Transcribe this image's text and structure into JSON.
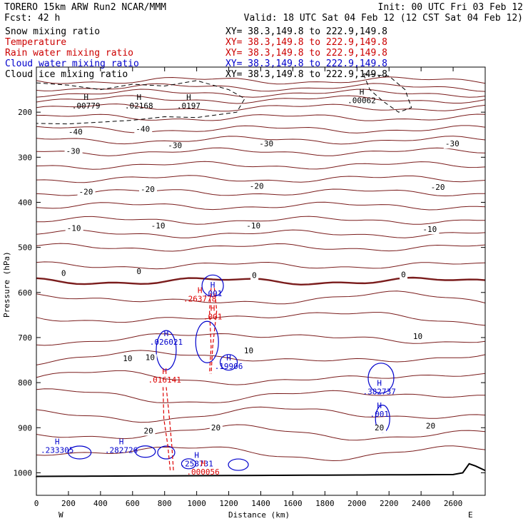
{
  "chart_data": {
    "type": "cross-section",
    "header": {
      "line1_left": "TORERO  15km ARW   Run2    NCAR/MMM",
      "line1_right": "Init: 00 UTC Fri 03 Feb 12",
      "line2_left": "Fcst:   42 h",
      "line2_right": "Valid: 18 UTC Sat 04 Feb 12 (12 CST Sat 04 Feb 12)"
    },
    "legend": [
      {
        "label": "Snow mixing ratio",
        "xy": "XY=  38.3,149.8 to 222.9,149.8",
        "color": "#000000"
      },
      {
        "label": "Temperature",
        "xy": "XY=  38.3,149.8 to 222.9,149.8",
        "color": "#cc0000"
      },
      {
        "label": "Rain water mixing ratio",
        "xy": "XY=  38.3,149.8 to 222.9,149.8",
        "color": "#cc0000"
      },
      {
        "label": "Cloud water mixing ratio",
        "xy": "XY=  38.3,149.8 to 222.9,149.8",
        "color": "#0000cc"
      },
      {
        "label": "Cloud ice mixing ratio",
        "xy": "XY=  38.3,149.8 to 222.9,149.8",
        "color": "#000000"
      }
    ],
    "xlabel": "Distance (km)",
    "ylabel": "Pressure (hPa)",
    "xlim": [
      0,
      2800
    ],
    "ylim": [
      100,
      1050
    ],
    "x_ticks": [
      0,
      200,
      400,
      600,
      800,
      1000,
      1200,
      1400,
      1600,
      1800,
      2000,
      2200,
      2400,
      2600
    ],
    "y_ticks": [
      200,
      300,
      400,
      500,
      600,
      700,
      800,
      900,
      1000
    ],
    "x_end_labels": {
      "left": "W",
      "right": "E"
    },
    "colors": {
      "temperature": "#7a1c1c",
      "rain": "#dd0000",
      "cloud_water": "#0000cc",
      "snow": "#000000",
      "terrain": "#000000"
    },
    "temperature_labels": [
      {
        "text": "-40",
        "x": 200,
        "p": 250
      },
      {
        "text": "-40",
        "x": 620,
        "p": 243
      },
      {
        "text": "-30",
        "x": 185,
        "p": 292
      },
      {
        "text": "-30",
        "x": 820,
        "p": 280
      },
      {
        "text": "-30",
        "x": 1390,
        "p": 276
      },
      {
        "text": "-30",
        "x": 2550,
        "p": 276
      },
      {
        "text": "-20",
        "x": 265,
        "p": 383
      },
      {
        "text": "-20",
        "x": 650,
        "p": 377
      },
      {
        "text": "-20",
        "x": 1330,
        "p": 370
      },
      {
        "text": "-20",
        "x": 2460,
        "p": 372
      },
      {
        "text": "-10",
        "x": 190,
        "p": 463
      },
      {
        "text": "-10",
        "x": 715,
        "p": 458
      },
      {
        "text": "-10",
        "x": 1310,
        "p": 458
      },
      {
        "text": "-10",
        "x": 2410,
        "p": 466
      },
      {
        "text": "0",
        "x": 155,
        "p": 563
      },
      {
        "text": "0",
        "x": 625,
        "p": 559
      },
      {
        "text": "0",
        "x": 1345,
        "p": 568
      },
      {
        "text": "0",
        "x": 2275,
        "p": 566
      },
      {
        "text": "10",
        "x": 540,
        "p": 752
      },
      {
        "text": "10",
        "x": 680,
        "p": 750
      },
      {
        "text": "10",
        "x": 1295,
        "p": 735
      },
      {
        "text": "10",
        "x": 2350,
        "p": 703
      },
      {
        "text": "20",
        "x": 670,
        "p": 913
      },
      {
        "text": "20",
        "x": 1090,
        "p": 906
      },
      {
        "text": "20",
        "x": 2110,
        "p": 906
      },
      {
        "text": "20",
        "x": 2430,
        "p": 902
      }
    ],
    "snow_maxima": [
      {
        "label": ".00779",
        "x": 310,
        "p": 192
      },
      {
        "label": ".02168",
        "x": 640,
        "p": 192
      },
      {
        "label": ".0197",
        "x": 950,
        "p": 192
      },
      {
        "label": ".00062",
        "x": 2030,
        "p": 180
      }
    ],
    "cloud_water_maxima": [
      {
        "label": ".001",
        "x": 1100,
        "p": 608
      },
      {
        "label": ".026021",
        "x": 810,
        "p": 716
      },
      {
        "label": ".19906",
        "x": 1200,
        "p": 770
      },
      {
        "label": ".382737",
        "x": 2140,
        "p": 826
      },
      {
        "label": ".001",
        "x": 2140,
        "p": 876
      },
      {
        "label": ".233305",
        "x": 130,
        "p": 956
      },
      {
        "label": ".282726",
        "x": 530,
        "p": 956
      },
      {
        "label": ".258731",
        "x": 1000,
        "p": 986
      }
    ],
    "rain_maxima": [
      {
        "label": ".263778",
        "x": 1020,
        "p": 620
      },
      {
        "label": ".001",
        "x": 1100,
        "p": 660
      },
      {
        "label": ".016141",
        "x": 800,
        "p": 800
      },
      {
        "label": ".000056",
        "x": 1040,
        "p": 1004
      }
    ]
  }
}
